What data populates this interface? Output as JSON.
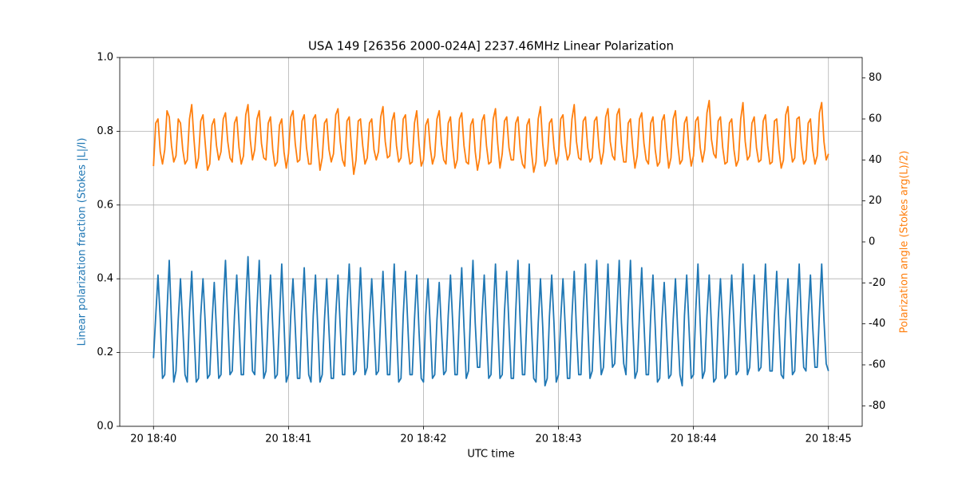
{
  "chart_data": {
    "type": "line",
    "title": "USA 149 [26356 2000-024A] 2237.46MHz Linear Polarization",
    "x_label": "UTC time",
    "y_label": "Linear polarization fraction (Stokes |L|/I)",
    "y2_label": "Polarization angle (Stokes arg(L)/2)",
    "grid": true,
    "xlim": [
      -15,
      315
    ],
    "xticks": [
      {
        "value": 0,
        "label": "20 18:40"
      },
      {
        "value": 60,
        "label": "20 18:41"
      },
      {
        "value": 120,
        "label": "20 18:42"
      },
      {
        "value": 180,
        "label": "20 18:43"
      },
      {
        "value": 240,
        "label": "20 18:44"
      },
      {
        "value": 300,
        "label": "20 18:45"
      }
    ],
    "ylim": [
      0,
      1
    ],
    "yticks": [
      {
        "value": 0,
        "label": "0.0"
      },
      0.2,
      0.4,
      0.6,
      0.8,
      {
        "value": 1,
        "label": "1.0"
      }
    ],
    "y2lim": [
      -90,
      90
    ],
    "y2ticks": [
      -80,
      -60,
      -40,
      -20,
      0,
      20,
      40,
      60,
      80
    ],
    "x": [
      0,
      1,
      2,
      3,
      4,
      5,
      6,
      7,
      8,
      9,
      10,
      11,
      12,
      13,
      14,
      15,
      16,
      17,
      18,
      19,
      20,
      21,
      22,
      23,
      24,
      25,
      26,
      27,
      28,
      29,
      30,
      31,
      32,
      33,
      34,
      35,
      36,
      37,
      38,
      39,
      40,
      41,
      42,
      43,
      44,
      45,
      46,
      47,
      48,
      49,
      50,
      51,
      52,
      53,
      54,
      55,
      56,
      57,
      58,
      59,
      60,
      61,
      62,
      63,
      64,
      65,
      66,
      67,
      68,
      69,
      70,
      71,
      72,
      73,
      74,
      75,
      76,
      77,
      78,
      79,
      80,
      81,
      82,
      83,
      84,
      85,
      86,
      87,
      88,
      89,
      90,
      91,
      92,
      93,
      94,
      95,
      96,
      97,
      98,
      99,
      100,
      101,
      102,
      103,
      104,
      105,
      106,
      107,
      108,
      109,
      110,
      111,
      112,
      113,
      114,
      115,
      116,
      117,
      118,
      119,
      120,
      121,
      122,
      123,
      124,
      125,
      126,
      127,
      128,
      129,
      130,
      131,
      132,
      133,
      134,
      135,
      136,
      137,
      138,
      139,
      140,
      141,
      142,
      143,
      144,
      145,
      146,
      147,
      148,
      149,
      150,
      151,
      152,
      153,
      154,
      155,
      156,
      157,
      158,
      159,
      160,
      161,
      162,
      163,
      164,
      165,
      166,
      167,
      168,
      169,
      170,
      171,
      172,
      173,
      174,
      175,
      176,
      177,
      178,
      179,
      180,
      181,
      182,
      183,
      184,
      185,
      186,
      187,
      188,
      189,
      190,
      191,
      192,
      193,
      194,
      195,
      196,
      197,
      198,
      199,
      200,
      201,
      202,
      203,
      204,
      205,
      206,
      207,
      208,
      209,
      210,
      211,
      212,
      213,
      214,
      215,
      216,
      217,
      218,
      219,
      220,
      221,
      222,
      223,
      224,
      225,
      226,
      227,
      228,
      229,
      230,
      231,
      232,
      233,
      234,
      235,
      236,
      237,
      238,
      239,
      240,
      241,
      242,
      243,
      244,
      245,
      246,
      247,
      248,
      249,
      250,
      251,
      252,
      253,
      254,
      255,
      256,
      257,
      258,
      259,
      260,
      261,
      262,
      263,
      264,
      265,
      266,
      267,
      268,
      269,
      270,
      271,
      272,
      273,
      274,
      275,
      276,
      277,
      278,
      279,
      280,
      281,
      282,
      283,
      284,
      285,
      286,
      287,
      288,
      289,
      290,
      291,
      292,
      293,
      294,
      295,
      296,
      297,
      298,
      299,
      300
    ],
    "series": [
      {
        "color": "#1f77b4",
        "values": [
          0.185,
          0.3,
          0.41,
          0.29,
          0.13,
          0.14,
          0.31,
          0.45,
          0.28,
          0.12,
          0.15,
          0.29,
          0.4,
          0.27,
          0.14,
          0.12,
          0.31,
          0.42,
          0.26,
          0.12,
          0.13,
          0.3,
          0.4,
          0.28,
          0.13,
          0.14,
          0.28,
          0.39,
          0.26,
          0.13,
          0.14,
          0.33,
          0.45,
          0.29,
          0.14,
          0.15,
          0.3,
          0.41,
          0.28,
          0.14,
          0.14,
          0.33,
          0.46,
          0.3,
          0.15,
          0.14,
          0.32,
          0.45,
          0.28,
          0.13,
          0.15,
          0.3,
          0.41,
          0.27,
          0.13,
          0.14,
          0.29,
          0.44,
          0.28,
          0.12,
          0.14,
          0.3,
          0.4,
          0.27,
          0.13,
          0.13,
          0.31,
          0.43,
          0.28,
          0.14,
          0.12,
          0.3,
          0.41,
          0.27,
          0.12,
          0.14,
          0.29,
          0.4,
          0.26,
          0.13,
          0.13,
          0.3,
          0.41,
          0.27,
          0.14,
          0.14,
          0.32,
          0.44,
          0.29,
          0.14,
          0.15,
          0.3,
          0.43,
          0.28,
          0.14,
          0.16,
          0.29,
          0.4,
          0.27,
          0.14,
          0.15,
          0.3,
          0.42,
          0.28,
          0.14,
          0.14,
          0.31,
          0.44,
          0.27,
          0.12,
          0.13,
          0.3,
          0.42,
          0.28,
          0.14,
          0.14,
          0.29,
          0.41,
          0.26,
          0.13,
          0.12,
          0.3,
          0.4,
          0.27,
          0.13,
          0.14,
          0.29,
          0.39,
          0.26,
          0.14,
          0.15,
          0.3,
          0.41,
          0.28,
          0.14,
          0.14,
          0.31,
          0.43,
          0.27,
          0.13,
          0.15,
          0.32,
          0.45,
          0.28,
          0.16,
          0.16,
          0.3,
          0.41,
          0.27,
          0.13,
          0.14,
          0.3,
          0.44,
          0.28,
          0.13,
          0.14,
          0.31,
          0.42,
          0.27,
          0.13,
          0.13,
          0.31,
          0.45,
          0.28,
          0.14,
          0.14,
          0.3,
          0.44,
          0.27,
          0.13,
          0.12,
          0.28,
          0.4,
          0.27,
          0.11,
          0.13,
          0.3,
          0.41,
          0.28,
          0.12,
          0.14,
          0.29,
          0.4,
          0.27,
          0.13,
          0.13,
          0.3,
          0.42,
          0.26,
          0.14,
          0.14,
          0.31,
          0.44,
          0.28,
          0.13,
          0.15,
          0.31,
          0.45,
          0.27,
          0.14,
          0.16,
          0.3,
          0.44,
          0.28,
          0.16,
          0.17,
          0.31,
          0.45,
          0.28,
          0.17,
          0.14,
          0.32,
          0.45,
          0.27,
          0.13,
          0.15,
          0.3,
          0.43,
          0.28,
          0.14,
          0.14,
          0.3,
          0.41,
          0.27,
          0.12,
          0.13,
          0.29,
          0.39,
          0.26,
          0.13,
          0.14,
          0.29,
          0.4,
          0.26,
          0.14,
          0.11,
          0.3,
          0.41,
          0.27,
          0.13,
          0.14,
          0.31,
          0.44,
          0.28,
          0.13,
          0.15,
          0.3,
          0.41,
          0.27,
          0.12,
          0.13,
          0.29,
          0.4,
          0.27,
          0.13,
          0.14,
          0.3,
          0.41,
          0.28,
          0.14,
          0.15,
          0.31,
          0.44,
          0.27,
          0.14,
          0.16,
          0.3,
          0.41,
          0.28,
          0.15,
          0.16,
          0.31,
          0.44,
          0.29,
          0.15,
          0.15,
          0.3,
          0.42,
          0.27,
          0.14,
          0.13,
          0.29,
          0.4,
          0.28,
          0.14,
          0.15,
          0.31,
          0.44,
          0.28,
          0.16,
          0.15,
          0.3,
          0.41,
          0.27,
          0.16,
          0.16,
          0.31,
          0.44,
          0.29,
          0.17,
          0.15
        ]
      },
      {
        "color": "#ff7f0e",
        "axis": "y2",
        "values": [
          37,
          58,
          60,
          44,
          38,
          45,
          64,
          61,
          47,
          39,
          42,
          60,
          58,
          45,
          38,
          40,
          60,
          67,
          50,
          36,
          41,
          59,
          62,
          48,
          35,
          38,
          57,
          60,
          47,
          40,
          44,
          60,
          63,
          49,
          41,
          39,
          58,
          61,
          46,
          38,
          42,
          62,
          67,
          50,
          40,
          45,
          60,
          64,
          48,
          41,
          40,
          58,
          61,
          45,
          37,
          39,
          57,
          60,
          44,
          36,
          43,
          61,
          64,
          48,
          39,
          40,
          59,
          62,
          46,
          38,
          38,
          60,
          62,
          47,
          35,
          41,
          58,
          60,
          45,
          39,
          43,
          62,
          65,
          49,
          40,
          37,
          59,
          61,
          46,
          33,
          40,
          59,
          60,
          47,
          38,
          41,
          58,
          60,
          45,
          40,
          44,
          61,
          66,
          49,
          41,
          42,
          59,
          63,
          47,
          39,
          41,
          60,
          62,
          46,
          38,
          39,
          58,
          64,
          48,
          37,
          40,
          57,
          60,
          46,
          38,
          42,
          60,
          64,
          48,
          40,
          38,
          58,
          61,
          46,
          36,
          40,
          60,
          63,
          47,
          39,
          38,
          57,
          60,
          44,
          35,
          41,
          59,
          62,
          47,
          38,
          39,
          60,
          65,
          48,
          36,
          43,
          59,
          61,
          46,
          40,
          40,
          58,
          61,
          45,
          38,
          36,
          57,
          60,
          44,
          34,
          39,
          60,
          66,
          48,
          37,
          40,
          58,
          60,
          46,
          38,
          42,
          60,
          62,
          47,
          40,
          43,
          60,
          67,
          49,
          41,
          40,
          59,
          61,
          46,
          39,
          41,
          59,
          61,
          46,
          38,
          44,
          61,
          65,
          49,
          42,
          40,
          62,
          65,
          48,
          39,
          39,
          58,
          60,
          46,
          36,
          42,
          60,
          63,
          48,
          40,
          38,
          58,
          61,
          45,
          37,
          39,
          59,
          62,
          47,
          36,
          41,
          60,
          64,
          48,
          38,
          40,
          58,
          61,
          46,
          37,
          42,
          59,
          61,
          46,
          39,
          45,
          63,
          69,
          50,
          43,
          41,
          59,
          61,
          46,
          38,
          39,
          58,
          60,
          45,
          37,
          40,
          60,
          68,
          49,
          40,
          42,
          58,
          61,
          46,
          39,
          40,
          59,
          62,
          47,
          38,
          39,
          59,
          60,
          45,
          36,
          40,
          62,
          66,
          48,
          39,
          41,
          60,
          61,
          46,
          38,
          40,
          58,
          60,
          45,
          38,
          42,
          63,
          68,
          49,
          40,
          43
        ]
      }
    ]
  }
}
